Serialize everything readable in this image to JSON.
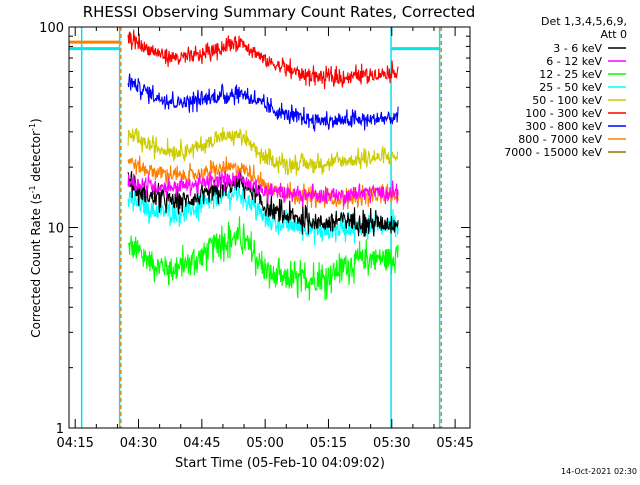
{
  "chart_data": {
    "type": "line",
    "title": "RHESSI Observing Summary Count Rates, Corrected",
    "xlabel": "Start Time (05-Feb-10 04:09:02)",
    "ylabel_main": "Corrected Count Rate (s",
    "ylabel_sup1": "-1",
    "ylabel_mid": " detector",
    "ylabel_sup2": "-1",
    "ylabel_end": ")",
    "y_scale": "log",
    "ylim": [
      1,
      100
    ],
    "xlim_minutes": [
      4.5,
      99.5
    ],
    "x_ticks": [
      {
        "label": "04:15",
        "minutes": 5.97
      },
      {
        "label": "04:30",
        "minutes": 20.97
      },
      {
        "label": "04:45",
        "minutes": 35.97
      },
      {
        "label": "05:00",
        "minutes": 50.97
      },
      {
        "label": "05:15",
        "minutes": 65.97
      },
      {
        "label": "05:30",
        "minutes": 80.97
      },
      {
        "label": "05:45",
        "minutes": 95.97
      }
    ],
    "y_tick_labels": [
      {
        "label": "1",
        "value": 1
      },
      {
        "label": "10",
        "value": 10
      },
      {
        "label": "100",
        "value": 100
      }
    ],
    "legend": {
      "header1": "Det 1,3,4,5,6,9,",
      "header2": "Att 0",
      "placement": "right"
    },
    "series": [
      {
        "name": "3 - 6 keV",
        "color": "#000000",
        "x": [
          18.5,
          21,
          25,
          30,
          35,
          40,
          45,
          48,
          51,
          55,
          60,
          65,
          70,
          75,
          80,
          82.5
        ],
        "y": [
          18,
          15,
          14,
          13.5,
          14,
          15,
          17,
          15,
          12.5,
          11.5,
          11,
          10.5,
          11,
          10.5,
          10.5,
          10.5
        ]
      },
      {
        "name": "6 - 12 keV",
        "color": "#ff00ff",
        "x": [
          18.5,
          21,
          25,
          30,
          35,
          40,
          45,
          48,
          51,
          55,
          60,
          65,
          70,
          75,
          80,
          82.5
        ],
        "y": [
          17,
          16.5,
          16,
          16,
          16.5,
          17,
          18,
          16,
          15,
          15,
          14.5,
          14.5,
          14.5,
          15,
          15,
          15
        ]
      },
      {
        "name": "12 - 25 keV",
        "color": "#00ff00",
        "x": [
          18.5,
          21,
          25,
          30,
          35,
          40,
          45,
          48,
          51,
          55,
          60,
          65,
          70,
          75,
          80,
          82.5
        ],
        "y": [
          8,
          7.5,
          6.5,
          6.2,
          7,
          8.5,
          9,
          7.5,
          6,
          5.5,
          5.5,
          5.5,
          6.5,
          7,
          7,
          7.5
        ]
      },
      {
        "name": "25 - 50 keV",
        "color": "#00ffff",
        "x": [
          18.5,
          21,
          25,
          30,
          35,
          40,
          45,
          48,
          51,
          55,
          60,
          65,
          70,
          75,
          80,
          82.5
        ],
        "y": [
          14,
          13,
          12,
          12,
          12.5,
          14,
          15,
          13,
          11,
          10.5,
          10,
          9.5,
          10,
          10,
          10.5,
          10.5
        ]
      },
      {
        "name": "50 - 100 keV",
        "color": "#cccc00",
        "x": [
          18.5,
          21,
          25,
          30,
          35,
          40,
          45,
          48,
          51,
          55,
          60,
          65,
          70,
          75,
          80,
          82.5
        ],
        "y": [
          29,
          27,
          25,
          24,
          25,
          28,
          29,
          25,
          22,
          21,
          20.5,
          21,
          21.5,
          22,
          22.5,
          22.5
        ]
      },
      {
        "name": "100 - 300 keV",
        "color": "#ff0000",
        "x": [
          18.5,
          20,
          23,
          27,
          31,
          35,
          40,
          45,
          48,
          51,
          55,
          60,
          65,
          70,
          75,
          80,
          82.5
        ],
        "y": [
          90,
          85,
          78,
          72,
          70,
          72,
          78,
          85,
          77,
          68,
          63,
          58,
          56,
          56,
          58,
          59,
          60
        ]
      },
      {
        "name": "300 - 800 keV",
        "color": "#0000ff",
        "x": [
          18.5,
          21,
          25,
          30,
          35,
          40,
          45,
          48,
          51,
          55,
          60,
          65,
          70,
          75,
          80,
          82.5
        ],
        "y": [
          55,
          50,
          45,
          42,
          43,
          45,
          47,
          44,
          40,
          37,
          35,
          34,
          34,
          34.5,
          35,
          35
        ]
      },
      {
        "name": "800 - 7000 keV",
        "color": "#ff8000",
        "x": [
          18.5,
          21,
          25,
          30,
          35,
          40,
          45,
          48,
          51,
          55,
          60,
          65,
          70,
          75,
          80,
          82.5
        ],
        "y": [
          22,
          20,
          19,
          18,
          18.5,
          19.5,
          20,
          18.5,
          16,
          15,
          14.5,
          14,
          14,
          14.5,
          14.5,
          14.5
        ]
      },
      {
        "name": "7000 - 15000 keV",
        "color": "#808000",
        "x": [],
        "y": []
      }
    ]
  },
  "footer": {
    "timestamp": "14-Oct-2021 02:30"
  }
}
